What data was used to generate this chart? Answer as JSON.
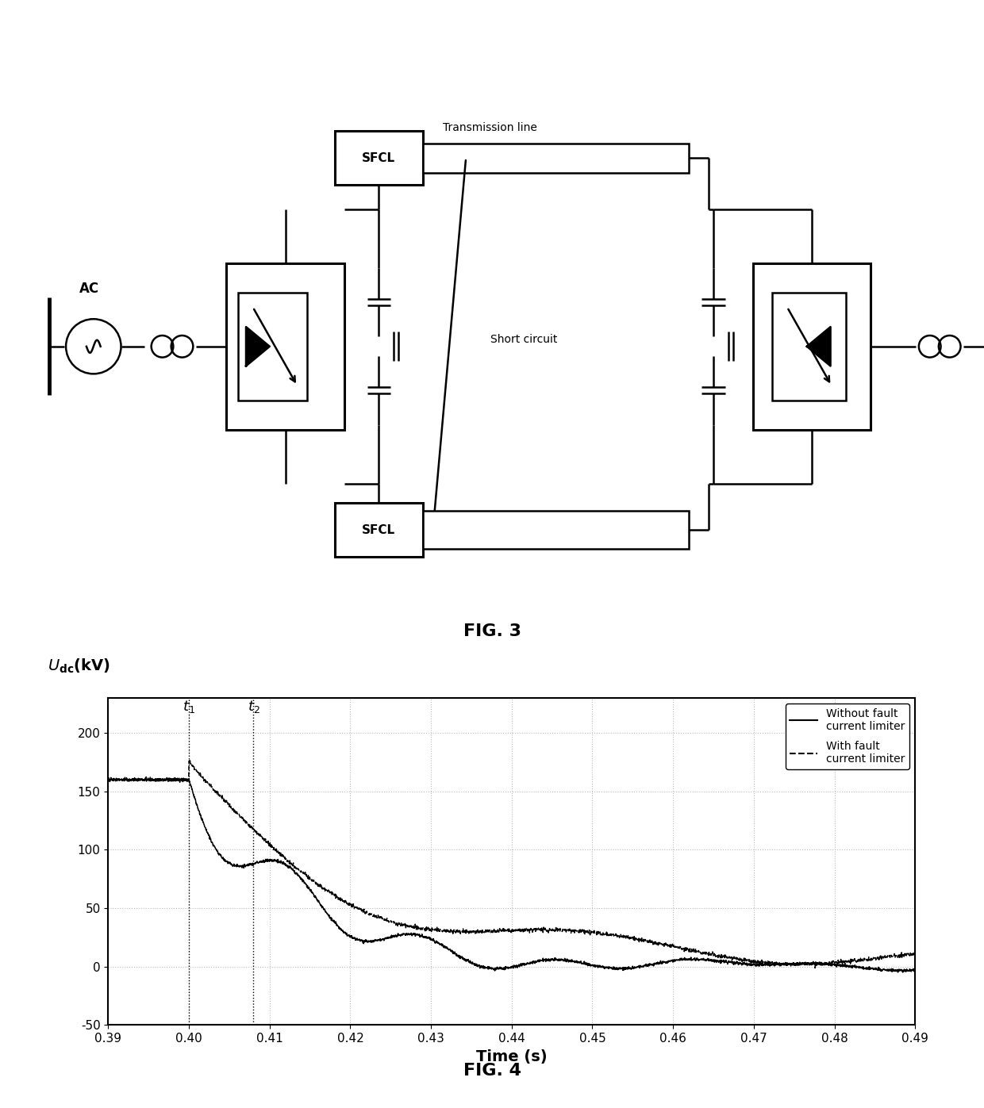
{
  "fig_width": 12.4,
  "fig_height": 13.97,
  "background_color": "#ffffff",
  "fig3_label": "FIG. 3",
  "fig4_label": "FIG. 4",
  "xlabel": "Time (s)",
  "xlim": [
    0.39,
    0.49
  ],
  "ylim": [
    -50,
    230
  ],
  "yticks": [
    -50,
    0,
    50,
    100,
    150,
    200
  ],
  "xticks": [
    0.39,
    0.4,
    0.41,
    0.42,
    0.43,
    0.44,
    0.45,
    0.46,
    0.47,
    0.48,
    0.49
  ],
  "xtick_labels": [
    "0.39",
    "0.40",
    "0.41",
    "0.42",
    "0.43",
    "0.44",
    "0.45",
    "0.46",
    "0.47",
    "0.48",
    "0.49"
  ],
  "t1": 0.4,
  "t2": 0.408,
  "legend_solid": "Without fault\ncurrent limiter",
  "legend_dashed": "With fault\ncurrent limiter",
  "line_color": "#000000",
  "grid_color": "#bbbbbb",
  "grid_style": ":"
}
